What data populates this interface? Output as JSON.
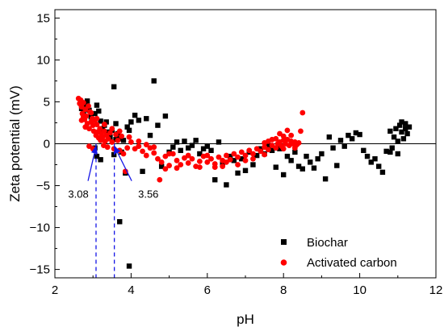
{
  "chart_data": {
    "type": "scatter",
    "xlabel": "pH",
    "ylabel": "Zeta potential (mV)",
    "xlim": [
      2,
      12
    ],
    "ylim": [
      -16,
      16
    ],
    "xticks": [
      "2",
      "4",
      "6",
      "8",
      "10",
      "12"
    ],
    "yticks": [
      "−15",
      "−10",
      "−5",
      "0",
      "5",
      "10",
      "15"
    ],
    "ytick_values": [
      -15,
      -10,
      -5,
      0,
      5,
      10,
      15
    ],
    "xtick_values": [
      2,
      4,
      6,
      8,
      10,
      12
    ],
    "zero_line": true,
    "legend_position": "bottom-right",
    "series": [
      {
        "name": "Biochar",
        "marker": "square",
        "color": "#000000",
        "points": [
          [
            2.7,
            4.2
          ],
          [
            2.75,
            3.6
          ],
          [
            2.8,
            4.5
          ],
          [
            2.85,
            5.1
          ],
          [
            2.9,
            4.0
          ],
          [
            2.95,
            3.2
          ],
          [
            3.0,
            2.8
          ],
          [
            3.05,
            3.6
          ],
          [
            3.1,
            4.6
          ],
          [
            3.15,
            3.9
          ],
          [
            3.2,
            2.7
          ],
          [
            3.25,
            1.8
          ],
          [
            3.3,
            2.2
          ],
          [
            3.35,
            2.6
          ],
          [
            3.4,
            1.4
          ],
          [
            3.45,
            0.8
          ],
          [
            3.5,
            1.6
          ],
          [
            3.55,
            6.8
          ],
          [
            3.6,
            2.4
          ],
          [
            3.65,
            1.2
          ],
          [
            3.7,
            0.6
          ],
          [
            3.75,
            -1.0
          ],
          [
            3.8,
            0.4
          ],
          [
            3.85,
            -3.5
          ],
          [
            3.9,
            2.0
          ],
          [
            3.95,
            1.6
          ],
          [
            4.0,
            2.6
          ],
          [
            4.1,
            3.4
          ],
          [
            4.2,
            2.8
          ],
          [
            4.3,
            -3.3
          ],
          [
            4.4,
            3.0
          ],
          [
            4.5,
            1.0
          ],
          [
            4.6,
            7.5
          ],
          [
            4.7,
            2.2
          ],
          [
            4.8,
            -2.7
          ],
          [
            4.9,
            3.3
          ],
          [
            5.0,
            -1.0
          ],
          [
            5.1,
            -0.4
          ],
          [
            5.2,
            0.2
          ],
          [
            5.3,
            -0.8
          ],
          [
            5.4,
            0.3
          ],
          [
            5.5,
            -0.5
          ],
          [
            5.6,
            -0.2
          ],
          [
            5.7,
            0.4
          ],
          [
            5.8,
            -1.2
          ],
          [
            5.9,
            -0.6
          ],
          [
            6.0,
            -0.3
          ],
          [
            6.1,
            -0.8
          ],
          [
            6.2,
            -4.3
          ],
          [
            6.3,
            0.2
          ],
          [
            6.4,
            -2.3
          ],
          [
            6.5,
            -4.9
          ],
          [
            6.6,
            -1.5
          ],
          [
            6.7,
            -2.0
          ],
          [
            6.8,
            -3.5
          ],
          [
            6.9,
            -1.8
          ],
          [
            7.0,
            -3.2
          ],
          [
            7.1,
            -1.0
          ],
          [
            7.2,
            -2.5
          ],
          [
            7.3,
            -1.4
          ],
          [
            7.4,
            -0.6
          ],
          [
            7.5,
            -1.2
          ],
          [
            7.6,
            -0.2
          ],
          [
            7.7,
            -0.8
          ],
          [
            7.8,
            -2.8
          ],
          [
            7.9,
            -0.6
          ],
          [
            8.0,
            -3.7
          ],
          [
            8.1,
            -1.5
          ],
          [
            8.2,
            -2.0
          ],
          [
            8.3,
            -1.0
          ],
          [
            8.4,
            -2.7
          ],
          [
            8.5,
            -3.0
          ],
          [
            8.6,
            -1.5
          ],
          [
            8.7,
            -2.2
          ],
          [
            8.8,
            -2.9
          ],
          [
            8.9,
            -1.8
          ],
          [
            9.0,
            -1.2
          ],
          [
            9.1,
            -4.2
          ],
          [
            9.2,
            0.8
          ],
          [
            9.3,
            -0.5
          ],
          [
            9.4,
            -2.6
          ],
          [
            9.5,
            0.4
          ],
          [
            9.6,
            -0.3
          ],
          [
            9.7,
            1.0
          ],
          [
            9.8,
            0.6
          ],
          [
            9.9,
            1.3
          ],
          [
            10.0,
            1.1
          ],
          [
            10.1,
            -0.8
          ],
          [
            10.2,
            -1.5
          ],
          [
            10.3,
            -2.2
          ],
          [
            10.4,
            -1.8
          ],
          [
            10.5,
            -2.7
          ],
          [
            10.6,
            -3.4
          ],
          [
            10.7,
            -0.9
          ],
          [
            10.8,
            1.5
          ],
          [
            10.85,
            -0.5
          ],
          [
            10.9,
            0.8
          ],
          [
            10.95,
            1.8
          ],
          [
            11.0,
            0.3
          ],
          [
            11.05,
            2.2
          ],
          [
            11.1,
            1.4
          ],
          [
            11.15,
            0.6
          ],
          [
            11.2,
            2.4
          ],
          [
            11.25,
            1.2
          ],
          [
            11.3,
            2.0
          ],
          [
            10.8,
            -1.0
          ],
          [
            11.0,
            -1.2
          ],
          [
            11.1,
            2.6
          ],
          [
            11.2,
            1.8
          ],
          [
            3.1,
            -1.5
          ],
          [
            3.2,
            -1.9
          ],
          [
            3.55,
            -1.3
          ],
          [
            3.7,
            -9.3
          ],
          [
            3.95,
            -14.6
          ],
          [
            3.05,
            -0.5
          ],
          [
            3.6,
            0.5
          ]
        ]
      },
      {
        "name": "Activated carbon",
        "marker": "circle",
        "color": "#ff0000",
        "points": [
          [
            2.62,
            5.4
          ],
          [
            2.65,
            4.8
          ],
          [
            2.68,
            5.2
          ],
          [
            2.7,
            4.4
          ],
          [
            2.72,
            3.6
          ],
          [
            2.75,
            4.9
          ],
          [
            2.78,
            2.9
          ],
          [
            2.8,
            4.1
          ],
          [
            2.82,
            3.3
          ],
          [
            2.85,
            2.4
          ],
          [
            2.88,
            4.5
          ],
          [
            2.9,
            1.8
          ],
          [
            2.92,
            3.8
          ],
          [
            2.95,
            2.6
          ],
          [
            2.98,
            3.0
          ],
          [
            3.0,
            2.2
          ],
          [
            3.02,
            1.5
          ],
          [
            3.05,
            2.8
          ],
          [
            3.08,
            1.0
          ],
          [
            3.1,
            2.3
          ],
          [
            3.12,
            1.4
          ],
          [
            3.15,
            0.7
          ],
          [
            3.18,
            1.8
          ],
          [
            3.2,
            0.4
          ],
          [
            3.22,
            1.2
          ],
          [
            3.25,
            0.8
          ],
          [
            3.28,
            -0.2
          ],
          [
            3.3,
            1.5
          ],
          [
            3.32,
            0.3
          ],
          [
            3.35,
            1.0
          ],
          [
            3.38,
            -0.4
          ],
          [
            3.4,
            0.6
          ],
          [
            3.45,
            1.3
          ],
          [
            3.5,
            0.2
          ],
          [
            3.55,
            -0.6
          ],
          [
            3.6,
            1.1
          ],
          [
            3.65,
            0.4
          ],
          [
            3.7,
            -0.8
          ],
          [
            3.75,
            0.9
          ],
          [
            3.8,
            -1.2
          ],
          [
            3.85,
            -3.3
          ],
          [
            3.9,
            -0.5
          ],
          [
            4.0,
            0.2
          ],
          [
            4.1,
            -0.6
          ],
          [
            4.2,
            -0.3
          ],
          [
            4.3,
            -0.9
          ],
          [
            4.4,
            -1.4
          ],
          [
            4.5,
            -0.5
          ],
          [
            4.6,
            -1.1
          ],
          [
            4.7,
            -1.8
          ],
          [
            4.75,
            -4.3
          ],
          [
            4.8,
            -2.2
          ],
          [
            4.9,
            -1.5
          ],
          [
            5.0,
            -2.6
          ],
          [
            5.1,
            -1.2
          ],
          [
            5.2,
            -2.0
          ],
          [
            5.3,
            -2.5
          ],
          [
            5.4,
            -1.7
          ],
          [
            5.5,
            -2.3
          ],
          [
            5.6,
            -1.8
          ],
          [
            5.7,
            -2.7
          ],
          [
            5.8,
            -2.1
          ],
          [
            5.9,
            -1.5
          ],
          [
            6.0,
            -2.2
          ],
          [
            6.1,
            -1.8
          ],
          [
            6.2,
            -2.4
          ],
          [
            6.3,
            -1.6
          ],
          [
            6.4,
            -2.0
          ],
          [
            6.5,
            -1.4
          ],
          [
            6.6,
            -1.9
          ],
          [
            6.7,
            -1.2
          ],
          [
            6.8,
            -1.6
          ],
          [
            6.9,
            -1.0
          ],
          [
            7.0,
            -1.4
          ],
          [
            7.1,
            -0.8
          ],
          [
            7.2,
            -1.2
          ],
          [
            7.3,
            -0.6
          ],
          [
            7.4,
            -0.9
          ],
          [
            7.5,
            -0.4
          ],
          [
            7.6,
            -0.7
          ],
          [
            7.7,
            -0.2
          ],
          [
            7.8,
            -0.5
          ],
          [
            7.85,
            0.0
          ],
          [
            7.9,
            0.2
          ],
          [
            7.95,
            -0.3
          ],
          [
            8.0,
            0.4
          ],
          [
            8.05,
            0.0
          ],
          [
            8.1,
            0.5
          ],
          [
            8.15,
            -0.2
          ],
          [
            8.2,
            0.3
          ],
          [
            8.25,
            0.0
          ],
          [
            8.3,
            0.2
          ],
          [
            8.35,
            -0.1
          ],
          [
            8.4,
            0.1
          ],
          [
            8.45,
            1.5
          ],
          [
            8.5,
            3.7
          ],
          [
            8.0,
            0.9
          ],
          [
            7.9,
            1.2
          ],
          [
            8.1,
            1.6
          ],
          [
            8.2,
            1.0
          ],
          [
            7.8,
            0.6
          ],
          [
            7.7,
            0.5
          ],
          [
            7.6,
            0.3
          ],
          [
            7.5,
            0.1
          ],
          [
            5.0,
            -1.2
          ],
          [
            5.5,
            -1.4
          ],
          [
            6.0,
            -1.4
          ],
          [
            6.5,
            -2.2
          ],
          [
            7.0,
            -2.0
          ],
          [
            7.5,
            -1.3
          ],
          [
            8.0,
            -0.6
          ],
          [
            8.3,
            -0.5
          ],
          [
            6.2,
            -2.8
          ],
          [
            6.8,
            -2.5
          ],
          [
            5.8,
            -2.8
          ],
          [
            5.2,
            -2.9
          ],
          [
            4.9,
            -3.0
          ],
          [
            7.2,
            -1.8
          ],
          [
            6.4,
            -2.7
          ],
          [
            4.6,
            -0.4
          ],
          [
            4.4,
            -0.1
          ],
          [
            4.2,
            0.3
          ],
          [
            3.95,
            0.8
          ],
          [
            3.7,
            1.5
          ],
          [
            3.5,
            1.8
          ],
          [
            3.3,
            2.3
          ],
          [
            3.1,
            3.0
          ],
          [
            2.95,
            3.7
          ],
          [
            2.9,
            -0.3
          ],
          [
            3.0,
            -0.6
          ],
          [
            2.8,
            2.0
          ],
          [
            2.7,
            2.8
          ],
          [
            2.75,
            3.2
          ]
        ]
      }
    ],
    "annotations": [
      {
        "label": "3.08",
        "x": 3.08
      },
      {
        "label": "3.56",
        "x": 3.56
      }
    ]
  }
}
